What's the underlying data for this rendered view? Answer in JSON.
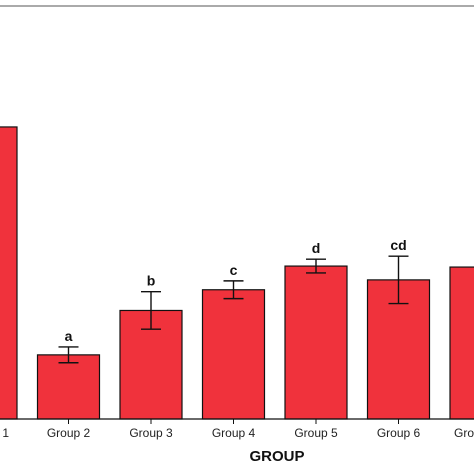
{
  "chart_data": {
    "type": "bar",
    "xlabel": "GROUP",
    "ylabel": "",
    "categories": [
      "1",
      "Group 2",
      "Group 3",
      "Group 4",
      "Group 5",
      "Group 6",
      "Gro"
    ],
    "values": [
      296,
      65,
      110,
      131,
      155,
      141,
      154
    ],
    "errors": [
      0,
      8,
      19,
      9,
      7,
      24,
      0
    ],
    "significance": [
      "",
      "a",
      "b",
      "c",
      "d",
      "cd",
      ""
    ],
    "ylim": [
      0,
      300
    ],
    "grid": false,
    "bar_color": "#f0323c",
    "edge_color": "#111111"
  }
}
